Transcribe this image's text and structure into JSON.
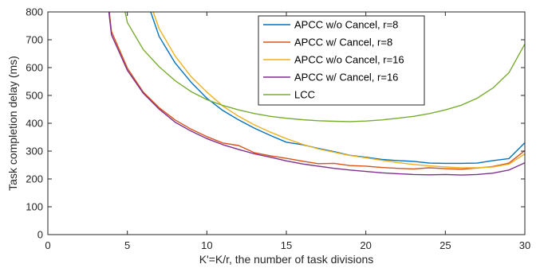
{
  "chart_data": {
    "type": "line",
    "xlabel": "K'=K/r, the number of task divisions",
    "ylabel": "Task completion delay (ms)",
    "xlim": [
      0,
      30
    ],
    "ylim": [
      0,
      800
    ],
    "xticks": [
      0,
      5,
      10,
      15,
      20,
      25,
      30
    ],
    "yticks": [
      0,
      100,
      200,
      300,
      400,
      500,
      600,
      700,
      800
    ],
    "grid": false,
    "legend_position": "top-right",
    "series": [
      {
        "name": "APCC w/o Cancel, r=8",
        "color": "#0072BD",
        "x": [
          6,
          7,
          8,
          9,
          10,
          11,
          12,
          13,
          14,
          15,
          16,
          17,
          18,
          19,
          20,
          21,
          22,
          23,
          24,
          25,
          26,
          27,
          28,
          29,
          30
        ],
        "y": [
          878,
          712,
          617,
          548,
          490,
          446,
          412,
          382,
          356,
          332,
          323,
          310,
          298,
          285,
          278,
          270,
          266,
          263,
          257,
          256,
          256,
          257,
          266,
          273,
          330
        ]
      },
      {
        "name": "APCC w/ Cancel, r=8",
        "color": "#D95319",
        "x": [
          3,
          4,
          5,
          6,
          7,
          8,
          9,
          10,
          11,
          12,
          13,
          14,
          15,
          16,
          17,
          18,
          19,
          20,
          21,
          22,
          23,
          24,
          25,
          26,
          27,
          28,
          29,
          30
        ],
        "y": [
          1260,
          730,
          598,
          512,
          456,
          412,
          379,
          352,
          329,
          320,
          294,
          283,
          274,
          264,
          255,
          256,
          248,
          246,
          241,
          238,
          236,
          240,
          237,
          235,
          239,
          245,
          257,
          302
        ]
      },
      {
        "name": "APCC w/o Cancel, r=16",
        "color": "#EDB120",
        "x": [
          6,
          7,
          8,
          9,
          10,
          11,
          12,
          13,
          14,
          15,
          16,
          17,
          18,
          19,
          20,
          21,
          22,
          23,
          24,
          25,
          26,
          27,
          28,
          29,
          30
        ],
        "y": [
          900,
          740,
          642,
          568,
          512,
          462,
          425,
          394,
          368,
          345,
          325,
          308,
          296,
          284,
          276,
          267,
          259,
          252,
          247,
          243,
          240,
          240,
          243,
          253,
          290
        ]
      },
      {
        "name": "APCC w/ Cancel, r=16",
        "color": "#7E2F8E",
        "x": [
          3,
          4,
          5,
          6,
          7,
          8,
          9,
          10,
          11,
          12,
          13,
          14,
          15,
          16,
          17,
          18,
          19,
          20,
          21,
          22,
          23,
          24,
          25,
          26,
          27,
          28,
          29,
          30
        ],
        "y": [
          1230,
          718,
          590,
          508,
          451,
          404,
          372,
          345,
          323,
          306,
          290,
          278,
          265,
          254,
          246,
          238,
          232,
          227,
          222,
          219,
          216,
          215,
          216,
          214,
          216,
          221,
          232,
          258
        ]
      },
      {
        "name": "LCC",
        "color": "#77AC30",
        "x": [
          4,
          5,
          6,
          7,
          8,
          9,
          10,
          11,
          12,
          13,
          14,
          15,
          16,
          17,
          18,
          19,
          20,
          21,
          22,
          23,
          24,
          25,
          26,
          27,
          28,
          29,
          30
        ],
        "y": [
          1030,
          762,
          665,
          603,
          553,
          514,
          485,
          464,
          448,
          435,
          425,
          418,
          413,
          409,
          407,
          406,
          408,
          412,
          418,
          425,
          435,
          448,
          465,
          490,
          527,
          582,
          685
        ]
      }
    ]
  }
}
